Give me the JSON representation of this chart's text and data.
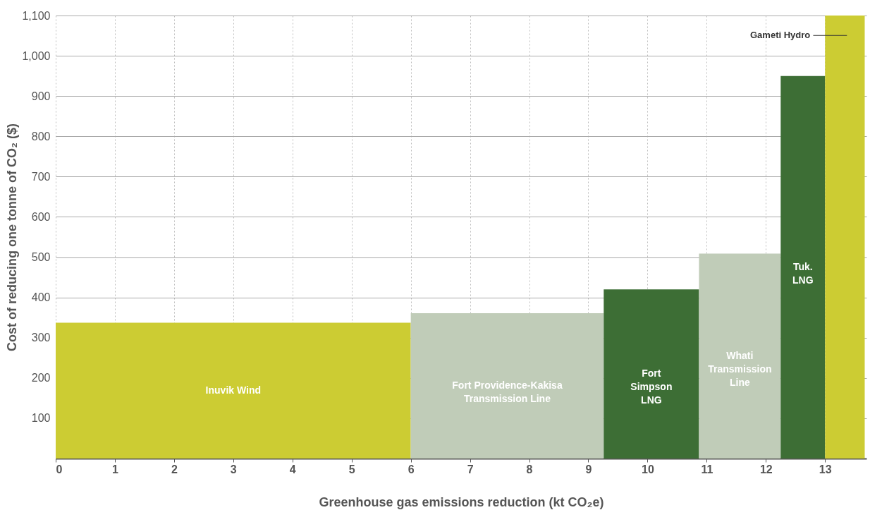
{
  "chart_data": {
    "type": "area",
    "xlabel": "Greenhouse gas emissions reduction (kt CO₂e)",
    "ylabel": "Cost of reducing one tonne of CO₂ ($)",
    "xlim": [
      0,
      13.7
    ],
    "xticks": [
      0,
      1,
      2,
      3,
      4,
      5,
      6,
      7,
      8,
      9,
      10,
      11,
      12,
      13
    ],
    "ylim": [
      0,
      1100
    ],
    "yticks": [
      100,
      200,
      300,
      400,
      500,
      600,
      700,
      800,
      900,
      {
        "value": 1000,
        "label": "1,000"
      },
      {
        "value": 1100,
        "label": "1,100"
      }
    ],
    "grid": true,
    "series": [
      {
        "name": "Inuvik Wind",
        "color": "#cccc33",
        "x": [
          0,
          6
        ],
        "values": [
          337,
          337
        ]
      },
      {
        "name": "Fort Providence-Kakisa\nTransmission Line",
        "color": "#c0ccb8",
        "x": [
          6,
          9.26
        ],
        "values": [
          361,
          361
        ]
      },
      {
        "name": "Fort\nSimpson\nLNG",
        "color": "#3d6e35",
        "x": [
          9.26,
          10.87
        ],
        "values": [
          420,
          420
        ]
      },
      {
        "name": "Whati\nTransmission\nLine",
        "color": "#c0ccb8",
        "x": [
          10.87,
          12.25
        ],
        "values": [
          509,
          509
        ]
      },
      {
        "name": "Tuk.\nLNG",
        "color": "#3d6e35",
        "x": [
          12.25,
          13.0
        ],
        "values": [
          950,
          950
        ]
      },
      {
        "name": "Gameti Hydro",
        "color": "#cccc33",
        "x": [
          13.0,
          13.67
        ],
        "values": [
          1100,
          1100
        ]
      }
    ]
  }
}
